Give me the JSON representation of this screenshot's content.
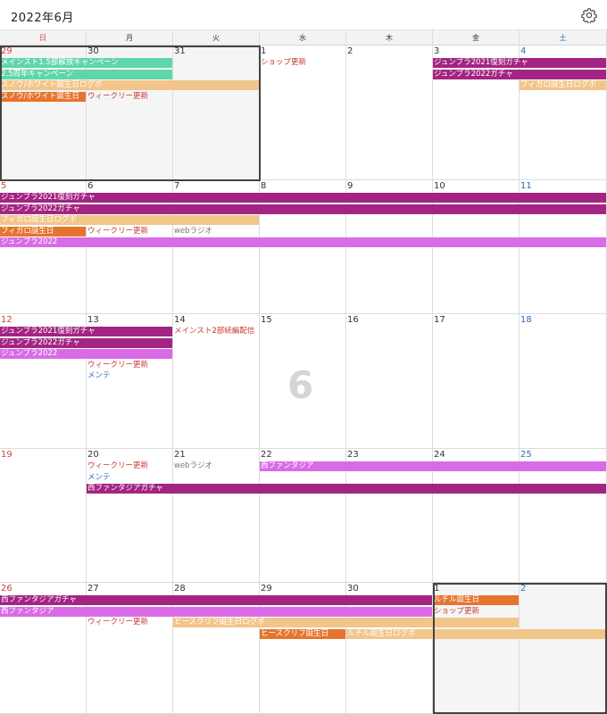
{
  "header": {
    "title": "2022年6月",
    "settings_icon": "gear-icon"
  },
  "weekdays": [
    "日",
    "月",
    "火",
    "水",
    "木",
    "金",
    "土"
  ],
  "colors": {
    "magenta": "#a32482",
    "violet": "#d96be6",
    "mint": "#5fd6a9",
    "peach": "#f2c58a",
    "orange": "#e6742f",
    "sunday": "#d0453a",
    "saturday": "#2e6db8",
    "red_text": "#c8382f",
    "blue_text": "#2e6db8",
    "gray_text": "#777777"
  },
  "weeks": [
    {
      "days": [
        "29",
        "30",
        "31",
        "1",
        "2",
        "3",
        "4"
      ],
      "out": [
        true,
        true,
        true,
        false,
        false,
        false,
        false
      ]
    },
    {
      "days": [
        "5",
        "6",
        "7",
        "8",
        "9",
        "10",
        "11"
      ],
      "out": [
        false,
        false,
        false,
        false,
        false,
        false,
        false
      ]
    },
    {
      "days": [
        "12",
        "13",
        "14",
        "15",
        "16",
        "17",
        "18"
      ],
      "out": [
        false,
        false,
        false,
        false,
        false,
        false,
        false
      ]
    },
    {
      "days": [
        "19",
        "20",
        "21",
        "22",
        "23",
        "24",
        "25"
      ],
      "out": [
        false,
        false,
        false,
        false,
        false,
        false,
        false
      ]
    },
    {
      "days": [
        "26",
        "27",
        "28",
        "29",
        "30",
        "1",
        "2"
      ],
      "out": [
        false,
        false,
        false,
        false,
        false,
        true,
        true
      ]
    }
  ],
  "month_watermark": "6",
  "events": [
    {
      "w": 0,
      "s": 0,
      "e": 1,
      "row": 0,
      "label": "メインスト1.5部解放キャンペーン",
      "color": "mint"
    },
    {
      "w": 0,
      "s": 0,
      "e": 1,
      "row": 1,
      "label": "2.5周年キャンペーン",
      "color": "mint"
    },
    {
      "w": 0,
      "s": 0,
      "e": 2,
      "row": 2,
      "label": "スノウ/ホワイト誕生日ログボ",
      "color": "peach"
    },
    {
      "w": 0,
      "s": 0,
      "e": 0,
      "row": 3,
      "label": "スノウ/ホワイト誕生日",
      "color": "orange"
    },
    {
      "w": 0,
      "s": 1,
      "e": 1,
      "row": 3,
      "label": "ウィークリー更新",
      "text": "red_text"
    },
    {
      "w": 0,
      "s": 3,
      "e": 3,
      "row": 0,
      "label": "ショップ更新",
      "text": "red_text"
    },
    {
      "w": 0,
      "s": 5,
      "e": 6,
      "row": 0,
      "label": "ジュンブラ2021復刻ガチャ",
      "color": "magenta"
    },
    {
      "w": 0,
      "s": 5,
      "e": 6,
      "row": 1,
      "label": "ジュンブラ2022ガチャ",
      "color": "magenta"
    },
    {
      "w": 0,
      "s": 6,
      "e": 6,
      "row": 2,
      "label": "フィガロ誕生日ログボ",
      "color": "peach"
    },
    {
      "w": 1,
      "s": 0,
      "e": 6,
      "row": 0,
      "label": "ジュンブラ2021復刻ガチャ",
      "color": "magenta"
    },
    {
      "w": 1,
      "s": 0,
      "e": 6,
      "row": 1,
      "label": "ジュンブラ2022ガチャ",
      "color": "magenta"
    },
    {
      "w": 1,
      "s": 0,
      "e": 2,
      "row": 2,
      "label": "フィガロ誕生日ログボ",
      "color": "peach"
    },
    {
      "w": 1,
      "s": 0,
      "e": 0,
      "row": 3,
      "label": "フィガロ誕生日",
      "color": "orange"
    },
    {
      "w": 1,
      "s": 1,
      "e": 1,
      "row": 3,
      "label": "ウィークリー更新",
      "text": "red_text"
    },
    {
      "w": 1,
      "s": 2,
      "e": 2,
      "row": 3,
      "label": "webラジオ",
      "text": "gray_text"
    },
    {
      "w": 1,
      "s": 0,
      "e": 6,
      "row": 4,
      "label": "ジュンブラ2022",
      "color": "violet"
    },
    {
      "w": 2,
      "s": 0,
      "e": 1,
      "row": 0,
      "label": "ジュンブラ2021復刻ガチャ",
      "color": "magenta"
    },
    {
      "w": 2,
      "s": 0,
      "e": 1,
      "row": 1,
      "label": "ジュンブラ2022ガチャ",
      "color": "magenta"
    },
    {
      "w": 2,
      "s": 0,
      "e": 1,
      "row": 2,
      "label": "ジュンブラ2022",
      "color": "violet"
    },
    {
      "w": 2,
      "s": 2,
      "e": 2,
      "row": 0,
      "label": "メインスト2部続編配信",
      "text": "red_text"
    },
    {
      "w": 2,
      "s": 1,
      "e": 1,
      "row": 3,
      "label": "ウィークリー更新",
      "text": "red_text"
    },
    {
      "w": 2,
      "s": 1,
      "e": 1,
      "row": 4,
      "label": "メンテ",
      "text": "blue_text"
    },
    {
      "w": 3,
      "s": 1,
      "e": 1,
      "row": 0,
      "label": "ウィークリー更新",
      "text": "red_text"
    },
    {
      "w": 3,
      "s": 2,
      "e": 2,
      "row": 0,
      "label": "webラジオ",
      "text": "gray_text"
    },
    {
      "w": 3,
      "s": 3,
      "e": 6,
      "row": 0,
      "label": "西ファンタジア",
      "color": "violet"
    },
    {
      "w": 3,
      "s": 1,
      "e": 1,
      "row": 1,
      "label": "メンテ",
      "text": "blue_text"
    },
    {
      "w": 3,
      "s": 1,
      "e": 6,
      "row": 2,
      "label": "西ファンタジアガチャ",
      "color": "magenta"
    },
    {
      "w": 4,
      "s": 0,
      "e": 4,
      "row": 0,
      "label": "西ファンタジアガチャ",
      "color": "magenta"
    },
    {
      "w": 4,
      "s": 5,
      "e": 5,
      "row": 0,
      "label": "ルチル誕生日",
      "color": "orange"
    },
    {
      "w": 4,
      "s": 0,
      "e": 4,
      "row": 1,
      "label": "西ファンタジア",
      "color": "violet"
    },
    {
      "w": 4,
      "s": 5,
      "e": 5,
      "row": 1,
      "label": "ショップ更新",
      "text": "red_text"
    },
    {
      "w": 4,
      "s": 1,
      "e": 1,
      "row": 2,
      "label": "ウィークリー更新",
      "text": "red_text"
    },
    {
      "w": 4,
      "s": 2,
      "e": 5,
      "row": 2,
      "label": "ヒースクリフ誕生日ログボ",
      "color": "peach"
    },
    {
      "w": 4,
      "s": 3,
      "e": 3,
      "row": 3,
      "label": "ヒースクリフ誕生日",
      "color": "orange"
    },
    {
      "w": 4,
      "s": 4,
      "e": 6,
      "row": 3,
      "label": "ルチル誕生日ログボ",
      "color": "peach"
    }
  ]
}
